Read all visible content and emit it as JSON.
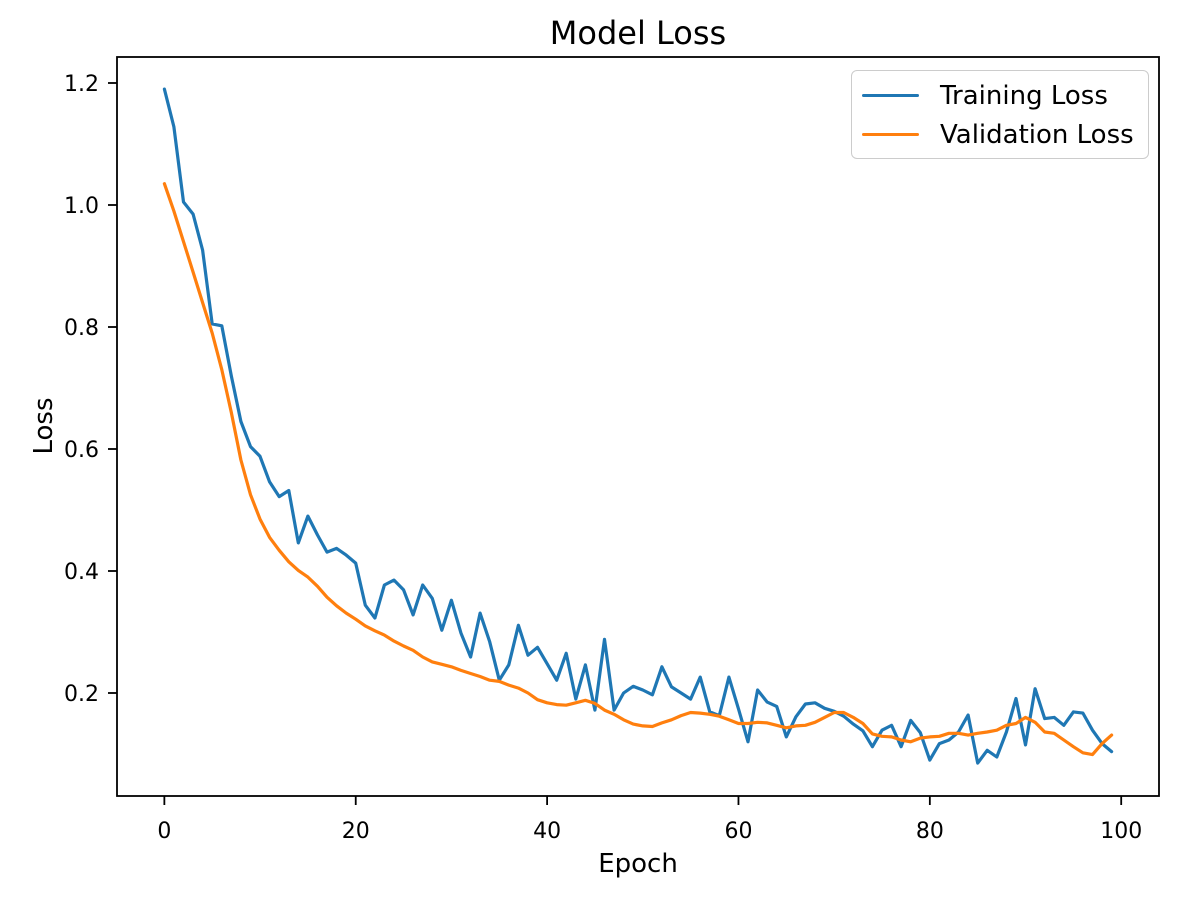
{
  "figure": {
    "background": "#ffffff",
    "text_color": "#000000",
    "spine_color": "#000000"
  },
  "chart_data": {
    "type": "line",
    "title": "Model Loss",
    "xlabel": "Epoch",
    "ylabel": "Loss",
    "x": {
      "start": 0,
      "end": 99,
      "step": 1,
      "count": 100
    },
    "xlim": [
      -4.95,
      103.95
    ],
    "ylim": [
      0.031,
      1.243
    ],
    "grid": false,
    "legend_position": "upper right",
    "xticks": {
      "values": [
        0,
        20,
        40,
        60,
        80,
        100
      ],
      "labels": [
        "0",
        "20",
        "40",
        "60",
        "80",
        "100"
      ]
    },
    "yticks": {
      "values": [
        0.2,
        0.4,
        0.6,
        0.8,
        1.0,
        1.2
      ],
      "labels": [
        "0.2",
        "0.4",
        "0.6",
        "0.8",
        "1.0",
        "1.2"
      ]
    },
    "series": [
      {
        "name": "Training Loss",
        "color": "#1f77b4",
        "values": [
          1.19,
          1.128,
          1.005,
          0.985,
          0.926,
          0.805,
          0.802,
          0.72,
          0.645,
          0.604,
          0.588,
          0.546,
          0.522,
          0.532,
          0.446,
          0.49,
          0.459,
          0.431,
          0.437,
          0.426,
          0.413,
          0.344,
          0.323,
          0.377,
          0.385,
          0.369,
          0.328,
          0.377,
          0.355,
          0.303,
          0.352,
          0.298,
          0.259,
          0.331,
          0.284,
          0.221,
          0.246,
          0.311,
          0.262,
          0.275,
          0.248,
          0.221,
          0.265,
          0.19,
          0.246,
          0.172,
          0.288,
          0.172,
          0.2,
          0.211,
          0.205,
          0.197,
          0.243,
          0.21,
          0.2,
          0.19,
          0.226,
          0.169,
          0.163,
          0.226,
          0.174,
          0.12,
          0.205,
          0.185,
          0.178,
          0.128,
          0.161,
          0.182,
          0.184,
          0.175,
          0.17,
          0.162,
          0.149,
          0.138,
          0.112,
          0.139,
          0.147,
          0.112,
          0.155,
          0.135,
          0.09,
          0.117,
          0.123,
          0.136,
          0.164,
          0.085,
          0.106,
          0.095,
          0.136,
          0.191,
          0.115,
          0.207,
          0.158,
          0.16,
          0.147,
          0.169,
          0.167,
          0.139,
          0.117,
          0.104
        ]
      },
      {
        "name": "Validation Loss",
        "color": "#ff7f0e",
        "values": [
          1.035,
          0.99,
          0.94,
          0.89,
          0.84,
          0.79,
          0.73,
          0.66,
          0.582,
          0.525,
          0.485,
          0.455,
          0.434,
          0.415,
          0.401,
          0.39,
          0.375,
          0.357,
          0.343,
          0.331,
          0.321,
          0.31,
          0.302,
          0.295,
          0.285,
          0.277,
          0.27,
          0.259,
          0.251,
          0.247,
          0.243,
          0.237,
          0.232,
          0.227,
          0.221,
          0.219,
          0.213,
          0.208,
          0.2,
          0.189,
          0.184,
          0.181,
          0.18,
          0.184,
          0.188,
          0.183,
          0.172,
          0.165,
          0.156,
          0.149,
          0.146,
          0.145,
          0.151,
          0.156,
          0.163,
          0.168,
          0.167,
          0.165,
          0.162,
          0.156,
          0.15,
          0.15,
          0.152,
          0.151,
          0.147,
          0.143,
          0.146,
          0.147,
          0.152,
          0.16,
          0.168,
          0.168,
          0.16,
          0.15,
          0.133,
          0.129,
          0.128,
          0.123,
          0.12,
          0.126,
          0.128,
          0.129,
          0.134,
          0.134,
          0.131,
          0.134,
          0.136,
          0.139,
          0.147,
          0.15,
          0.16,
          0.152,
          0.136,
          0.134,
          0.123,
          0.112,
          0.102,
          0.099,
          0.117,
          0.131
        ]
      }
    ]
  },
  "legend": {
    "items": [
      {
        "label": "Training Loss",
        "color": "#1f77b4"
      },
      {
        "label": "Validation Loss",
        "color": "#ff7f0e"
      }
    ]
  }
}
